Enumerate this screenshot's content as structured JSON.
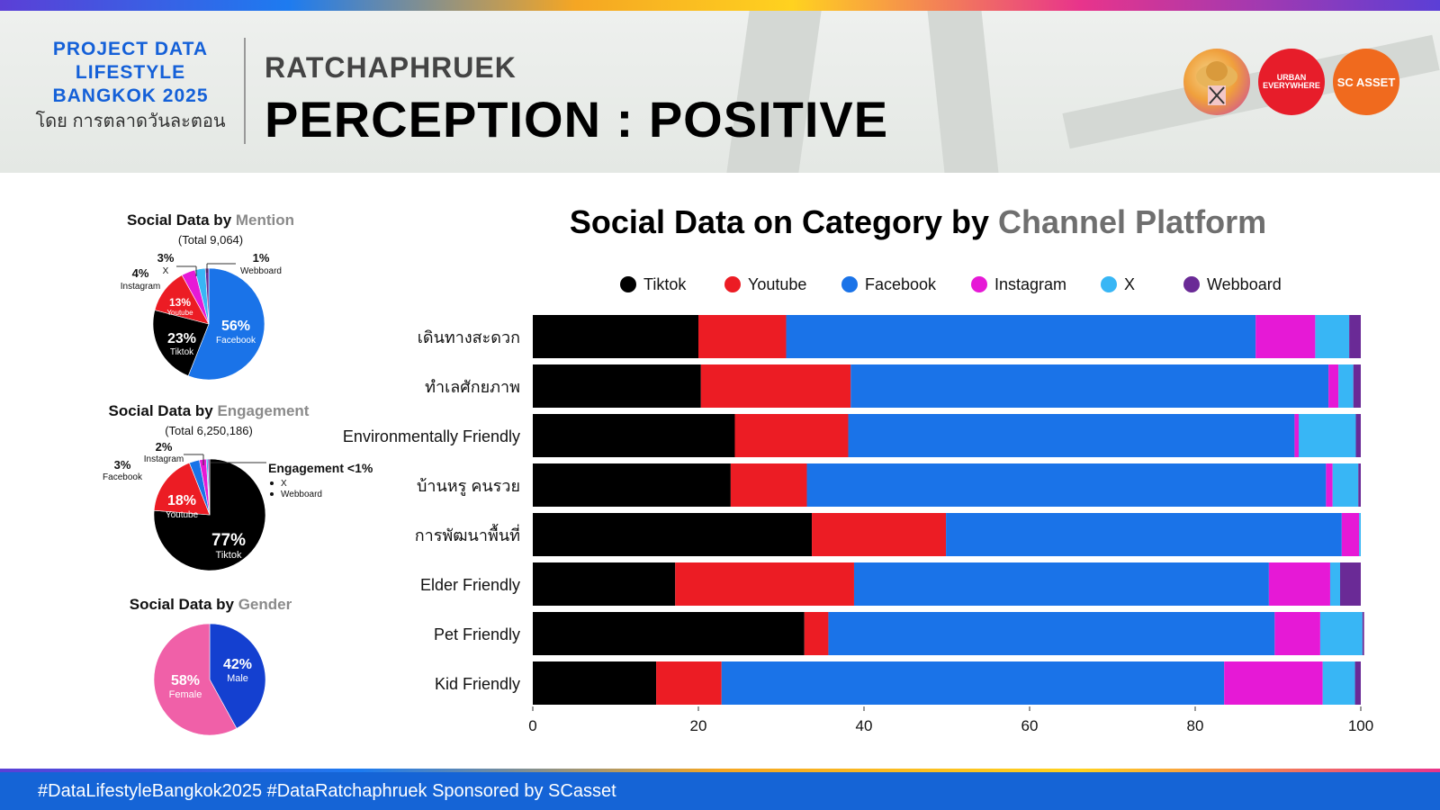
{
  "header": {
    "brand_line1": "PROJECT DATA",
    "brand_line2": "LIFESTYLE",
    "brand_line3": "BANGKOK 2025",
    "brand_sub": "โดย การตลาดวันละตอน",
    "area": "RATCHAPHRUEK",
    "title": "PERCEPTION : POSITIVE",
    "logo2_text": "URBAN EVERYWHERE",
    "logo3_text": "SC ASSET"
  },
  "footer": {
    "text": "#DataLifestyleBangkok2025 #DataRatchaphruek Sponsored by SCasset"
  },
  "colors": {
    "Tiktok": "#000000",
    "Youtube": "#ec1c24",
    "Facebook": "#1a73e8",
    "Instagram": "#e619d6",
    "X": "#38b6f5",
    "Webboard": "#6a2a96",
    "Male": "#1440d0",
    "Female": "#f060a8"
  },
  "chart_data": [
    {
      "type": "pie",
      "title": "Social Data by",
      "title_accent": "Mention",
      "subtitle": "(Total 9,064)",
      "slices": [
        {
          "name": "Facebook",
          "value": 56,
          "label": "56%"
        },
        {
          "name": "Tiktok",
          "value": 23,
          "label": "23%"
        },
        {
          "name": "Youtube",
          "value": 13,
          "label": "13%"
        },
        {
          "name": "Instagram",
          "value": 4,
          "label": "4%"
        },
        {
          "name": "X",
          "value": 3,
          "label": "3%"
        },
        {
          "name": "Webboard",
          "value": 1,
          "label": "1%"
        }
      ]
    },
    {
      "type": "pie",
      "title": "Social Data by",
      "title_accent": "Engagement",
      "subtitle": "(Total 6,250,186)",
      "slices": [
        {
          "name": "Tiktok",
          "value": 77,
          "label": "77%"
        },
        {
          "name": "Youtube",
          "value": 18,
          "label": "18%"
        },
        {
          "name": "Facebook",
          "value": 3,
          "label": "3%"
        },
        {
          "name": "Instagram",
          "value": 2,
          "label": "2%"
        },
        {
          "name": "X",
          "value": 0.5,
          "label": ""
        },
        {
          "name": "Webboard",
          "value": 0.5,
          "label": ""
        }
      ],
      "note_title": "Engagement <1%",
      "note_items": [
        "X",
        "Webboard"
      ]
    },
    {
      "type": "pie",
      "title": "Social Data by",
      "title_accent": "Gender",
      "subtitle": "",
      "slices": [
        {
          "name": "Male",
          "value": 42,
          "label": "42%"
        },
        {
          "name": "Female",
          "value": 58,
          "label": "58%"
        }
      ]
    },
    {
      "type": "bar",
      "orientation": "horizontal",
      "stacked": true,
      "title": "Social Data on Category by",
      "title_accent": "Channel Platform",
      "legend_position": "top",
      "xlim": [
        0,
        100
      ],
      "xticks": [
        0,
        20,
        40,
        60,
        80,
        100
      ],
      "categories": [
        "เดินทางสะดวก",
        "ทำเลศักยภาพ",
        "Environmentally Friendly",
        "บ้านหรู คนรวย",
        "การพัฒนาพื้นที่",
        "Elder Friendly",
        "Pet Friendly",
        "Kid Friendly"
      ],
      "series": [
        {
          "name": "Tiktok",
          "values": [
            20,
            20.3,
            24.4,
            23.9,
            33.7,
            17.2,
            32.8,
            14.9
          ]
        },
        {
          "name": "Youtube",
          "values": [
            10.6,
            18.1,
            13.7,
            9.2,
            16.2,
            21.6,
            2.9,
            7.9
          ]
        },
        {
          "name": "Facebook",
          "values": [
            56.7,
            57.7,
            53.9,
            62.7,
            47.8,
            50.1,
            53.9,
            60.7
          ]
        },
        {
          "name": "Instagram",
          "values": [
            7.2,
            1.2,
            0.5,
            0.8,
            2.1,
            7.4,
            5.5,
            11.9
          ]
        },
        {
          "name": "X",
          "values": [
            4.1,
            1.8,
            6.9,
            3.1,
            0.2,
            1.2,
            5.1,
            3.9
          ]
        },
        {
          "name": "Webboard",
          "values": [
            1.4,
            0.9,
            0.6,
            0.3,
            0,
            2.5,
            0.2,
            0.7
          ]
        }
      ]
    }
  ]
}
